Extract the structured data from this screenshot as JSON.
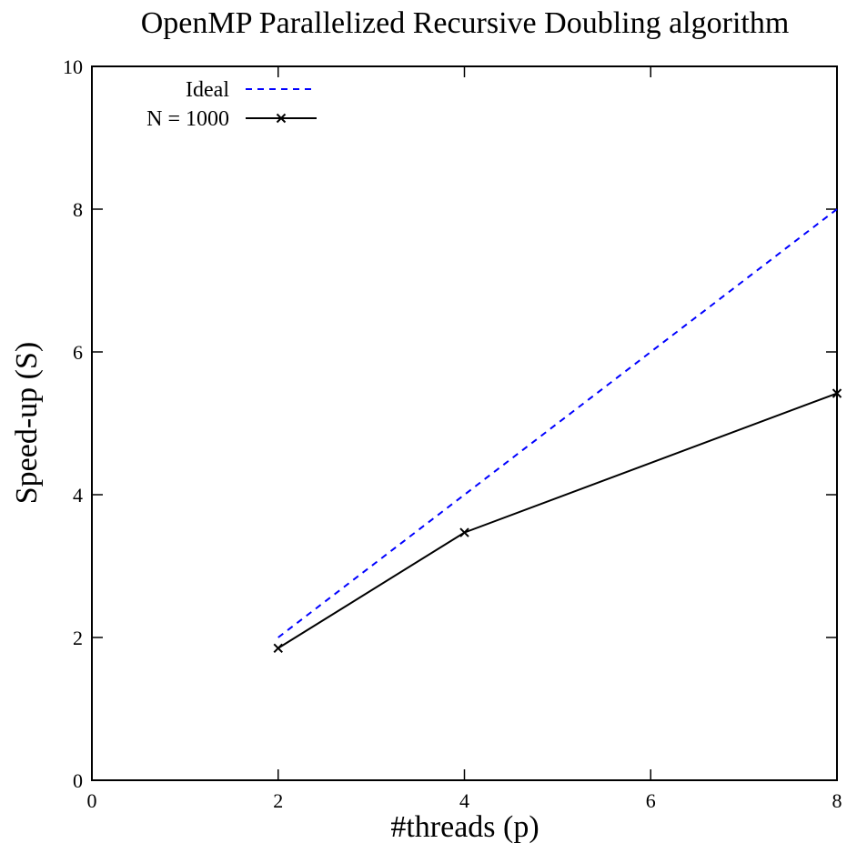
{
  "chart_data": {
    "type": "line",
    "title": "OpenMP Parallelized Recursive Doubling algorithm",
    "xlabel": "#threads (p)",
    "ylabel": "Speed-up (S)",
    "xlim": [
      0,
      8
    ],
    "ylim": [
      0,
      10
    ],
    "x_ticks": [
      0,
      2,
      4,
      6,
      8
    ],
    "y_ticks": [
      0,
      2,
      4,
      6,
      8,
      10
    ],
    "grid": false,
    "legend_position": "top-left",
    "series": [
      {
        "name": "Ideal",
        "x": [
          2,
          4,
          8
        ],
        "values": [
          2,
          4,
          8
        ],
        "color": "#0000ff",
        "style": "dashed",
        "marker": "none"
      },
      {
        "name": "N = 1000",
        "x": [
          2,
          4,
          8
        ],
        "values": [
          1.85,
          3.47,
          5.42
        ],
        "color": "#000000",
        "style": "solid",
        "marker": "x"
      }
    ]
  }
}
